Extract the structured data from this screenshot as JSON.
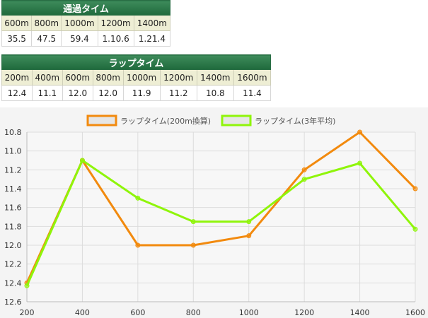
{
  "passing_table": {
    "title": "通過タイム",
    "headers": [
      "600m",
      "800m",
      "1000m",
      "1200m",
      "1400m"
    ],
    "values": [
      "35.5",
      "47.5",
      "59.4",
      "1.10.6",
      "1.21.4"
    ]
  },
  "lap_table": {
    "title": "ラップタイム",
    "headers": [
      "200m",
      "400m",
      "600m",
      "800m",
      "1000m",
      "1200m",
      "1400m",
      "1600m"
    ],
    "values": [
      "12.4",
      "11.1",
      "12.0",
      "12.0",
      "11.9",
      "11.2",
      "10.8",
      "11.4"
    ]
  },
  "chart_data": {
    "type": "line",
    "x": [
      200,
      400,
      600,
      800,
      1000,
      1200,
      1400,
      1600
    ],
    "series": [
      {
        "name": "ラップタイム(200m換算)",
        "color": "#f28a0e",
        "values": [
          12.4,
          11.1,
          12.0,
          12.0,
          11.9,
          11.2,
          10.8,
          11.4
        ]
      },
      {
        "name": "ラップタイム(3年平均)",
        "color": "#8ff50a",
        "values": [
          12.43,
          11.1,
          11.5,
          11.75,
          11.75,
          11.3,
          11.13,
          11.83
        ]
      }
    ],
    "xlim": [
      200,
      1600
    ],
    "ylim": [
      10.8,
      12.6
    ],
    "y_inverted": true,
    "y_ticks": [
      "10.8",
      "11.0",
      "11.2",
      "11.4",
      "11.6",
      "11.8",
      "12.0",
      "12.2",
      "12.4",
      "12.6"
    ],
    "x_ticks": [
      "200",
      "400",
      "600",
      "800",
      "1000",
      "1200",
      "1400",
      "1600"
    ],
    "grid": true,
    "legend": "top-center",
    "xlabel": "",
    "ylabel": ""
  }
}
